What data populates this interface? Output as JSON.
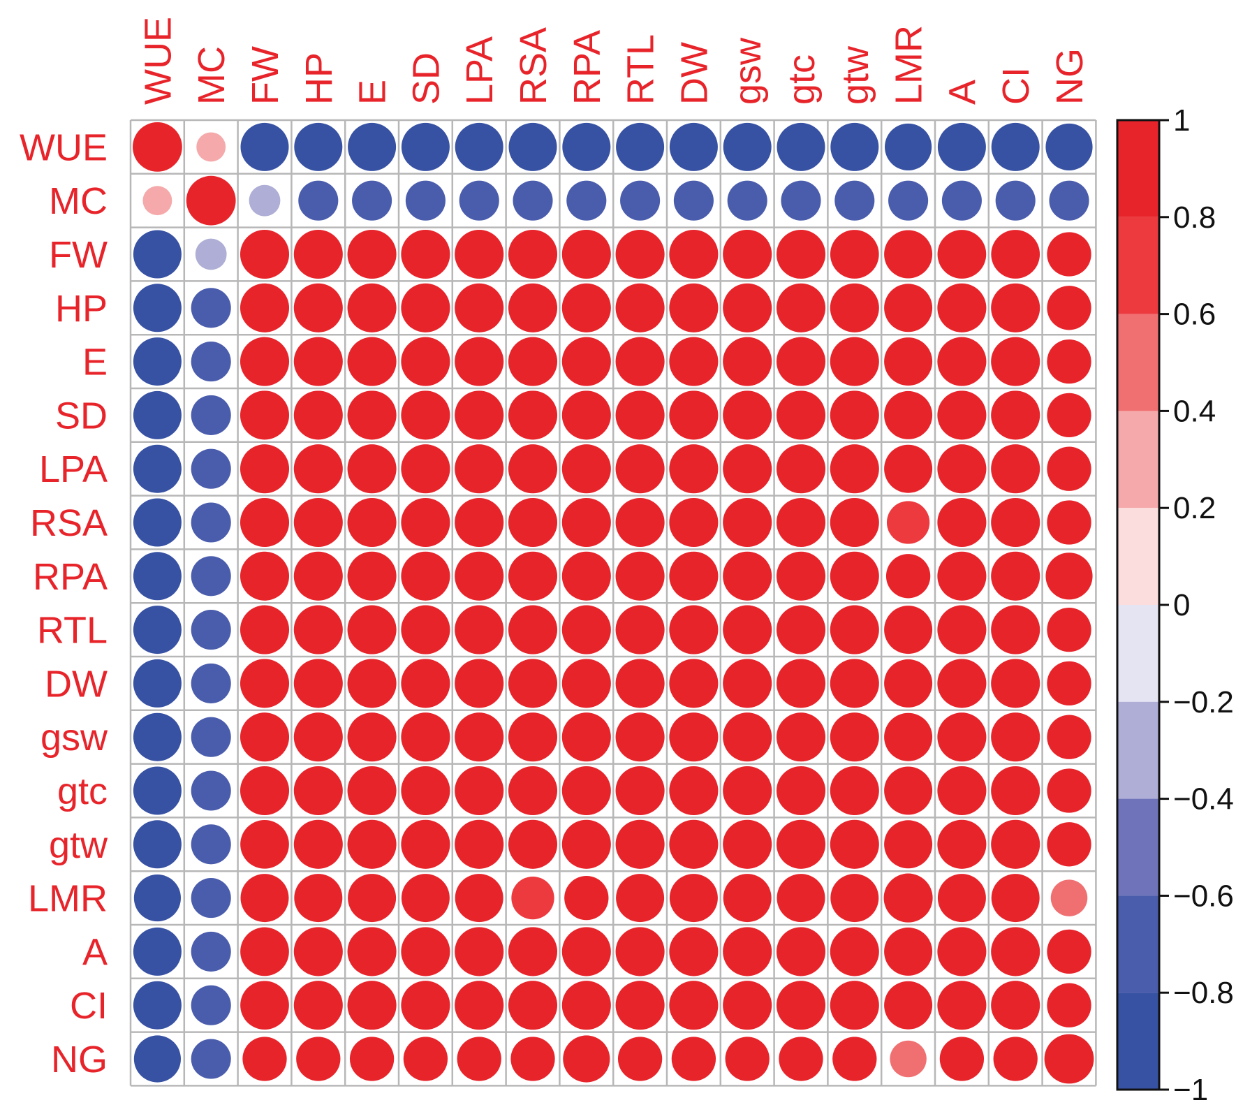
{
  "chart_data": {
    "type": "heatmap",
    "variables": [
      "WUE",
      "MC",
      "FW",
      "HP",
      "E",
      "SD",
      "LPA",
      "RSA",
      "RPA",
      "RTL",
      "DW",
      "gsw",
      "gtc",
      "gtw",
      "LMR",
      "A",
      "CI",
      "NG"
    ],
    "matrix": [
      [
        1.0,
        0.35,
        -0.95,
        -0.95,
        -0.95,
        -0.95,
        -0.95,
        -0.95,
        -0.95,
        -0.95,
        -0.95,
        -0.95,
        -0.95,
        -0.95,
        -0.9,
        -0.95,
        -0.95,
        -0.9
      ],
      [
        0.35,
        1.0,
        -0.4,
        -0.65,
        -0.65,
        -0.65,
        -0.65,
        -0.65,
        -0.65,
        -0.65,
        -0.65,
        -0.65,
        -0.65,
        -0.65,
        -0.65,
        -0.65,
        -0.65,
        -0.65
      ],
      [
        -0.95,
        -0.4,
        0.98,
        0.98,
        0.98,
        0.98,
        0.98,
        0.98,
        0.98,
        0.98,
        0.98,
        0.98,
        0.98,
        0.97,
        0.95,
        0.97,
        0.97,
        0.8
      ],
      [
        -0.95,
        -0.65,
        0.98,
        0.98,
        0.98,
        0.98,
        0.98,
        0.98,
        0.98,
        0.98,
        0.98,
        0.98,
        0.98,
        0.98,
        0.95,
        0.98,
        0.98,
        0.8
      ],
      [
        -0.95,
        -0.65,
        0.98,
        0.98,
        0.98,
        0.98,
        0.98,
        0.98,
        0.98,
        0.98,
        0.98,
        0.98,
        0.98,
        0.98,
        0.95,
        0.98,
        0.98,
        0.8
      ],
      [
        -0.95,
        -0.65,
        0.98,
        0.98,
        0.98,
        0.98,
        0.98,
        0.98,
        0.98,
        0.98,
        0.98,
        0.98,
        0.98,
        0.98,
        0.95,
        0.98,
        0.98,
        0.8
      ],
      [
        -0.95,
        -0.65,
        0.98,
        0.98,
        0.98,
        0.98,
        0.98,
        0.98,
        0.98,
        0.98,
        0.98,
        0.98,
        0.98,
        0.98,
        0.95,
        0.98,
        0.98,
        0.8
      ],
      [
        -0.95,
        -0.65,
        0.98,
        0.98,
        0.98,
        0.98,
        0.98,
        0.98,
        0.98,
        0.98,
        0.98,
        0.98,
        0.98,
        0.98,
        0.75,
        0.98,
        0.98,
        0.8
      ],
      [
        -0.95,
        -0.65,
        0.98,
        0.98,
        0.98,
        0.98,
        0.98,
        0.98,
        0.98,
        0.98,
        0.98,
        0.98,
        0.98,
        0.98,
        0.8,
        0.98,
        0.98,
        0.9
      ],
      [
        -0.95,
        -0.65,
        0.98,
        0.98,
        0.98,
        0.98,
        0.98,
        0.98,
        0.98,
        0.98,
        0.98,
        0.98,
        0.98,
        0.98,
        0.95,
        0.98,
        0.98,
        0.8
      ],
      [
        -0.95,
        -0.65,
        0.98,
        0.98,
        0.98,
        0.98,
        0.98,
        0.98,
        0.98,
        0.98,
        0.98,
        0.98,
        0.98,
        0.98,
        0.95,
        0.98,
        0.98,
        0.8
      ],
      [
        -0.95,
        -0.65,
        0.98,
        0.98,
        0.98,
        0.98,
        0.98,
        0.98,
        0.98,
        0.98,
        0.98,
        0.98,
        0.98,
        0.98,
        0.95,
        0.98,
        0.98,
        0.8
      ],
      [
        -0.95,
        -0.65,
        0.98,
        0.98,
        0.98,
        0.98,
        0.98,
        0.98,
        0.98,
        0.98,
        0.98,
        0.98,
        0.98,
        0.98,
        0.95,
        0.98,
        0.98,
        0.8
      ],
      [
        -0.95,
        -0.65,
        0.97,
        0.98,
        0.98,
        0.98,
        0.98,
        0.98,
        0.98,
        0.98,
        0.98,
        0.98,
        0.98,
        0.98,
        0.95,
        0.98,
        0.98,
        0.8
      ],
      [
        -0.9,
        -0.65,
        0.95,
        0.95,
        0.95,
        0.95,
        0.95,
        0.75,
        0.8,
        0.95,
        0.95,
        0.95,
        0.95,
        0.95,
        0.98,
        0.95,
        0.95,
        0.55
      ],
      [
        -0.95,
        -0.65,
        0.97,
        0.98,
        0.98,
        0.98,
        0.98,
        0.98,
        0.98,
        0.98,
        0.98,
        0.98,
        0.98,
        0.98,
        0.95,
        0.98,
        0.98,
        0.8
      ],
      [
        -0.95,
        -0.65,
        0.97,
        0.98,
        0.98,
        0.98,
        0.98,
        0.98,
        0.98,
        0.98,
        0.98,
        0.98,
        0.98,
        0.98,
        0.95,
        0.98,
        0.98,
        0.8
      ],
      [
        -0.9,
        -0.65,
        0.8,
        0.8,
        0.8,
        0.8,
        0.8,
        0.8,
        0.9,
        0.8,
        0.8,
        0.8,
        0.8,
        0.8,
        0.55,
        0.8,
        0.8,
        1.0
      ]
    ],
    "colorbar": {
      "ticks": [
        1,
        0.8,
        0.6,
        0.4,
        0.2,
        0,
        -0.2,
        -0.4,
        -0.6,
        -0.8,
        -1
      ],
      "tick_labels": [
        "1",
        "0.8",
        "0.6",
        "0.4",
        "0.2",
        "0",
        "−0.2",
        "−0.4",
        "−0.6",
        "−0.8",
        "−1"
      ],
      "range": [
        -1,
        1
      ],
      "bins": [
        {
          "from": 0.8,
          "to": 1.0,
          "color": "#e8242b"
        },
        {
          "from": 0.6,
          "to": 0.8,
          "color": "#ec3a3f"
        },
        {
          "from": 0.4,
          "to": 0.6,
          "color": "#f07072"
        },
        {
          "from": 0.2,
          "to": 0.4,
          "color": "#f5a9aa"
        },
        {
          "from": 0.0,
          "to": 0.2,
          "color": "#fbdddd"
        },
        {
          "from": -0.2,
          "to": 0.0,
          "color": "#e4e4f2"
        },
        {
          "from": -0.4,
          "to": -0.2,
          "color": "#aeaed6"
        },
        {
          "from": -0.6,
          "to": -0.4,
          "color": "#6f73ba"
        },
        {
          "from": -0.8,
          "to": -0.6,
          "color": "#4a5cac"
        },
        {
          "from": -1.0,
          "to": -0.8,
          "color": "#3751a3"
        }
      ]
    },
    "grid": true,
    "label_color": "#e8242b",
    "grid_color": "#b7b7b7"
  }
}
